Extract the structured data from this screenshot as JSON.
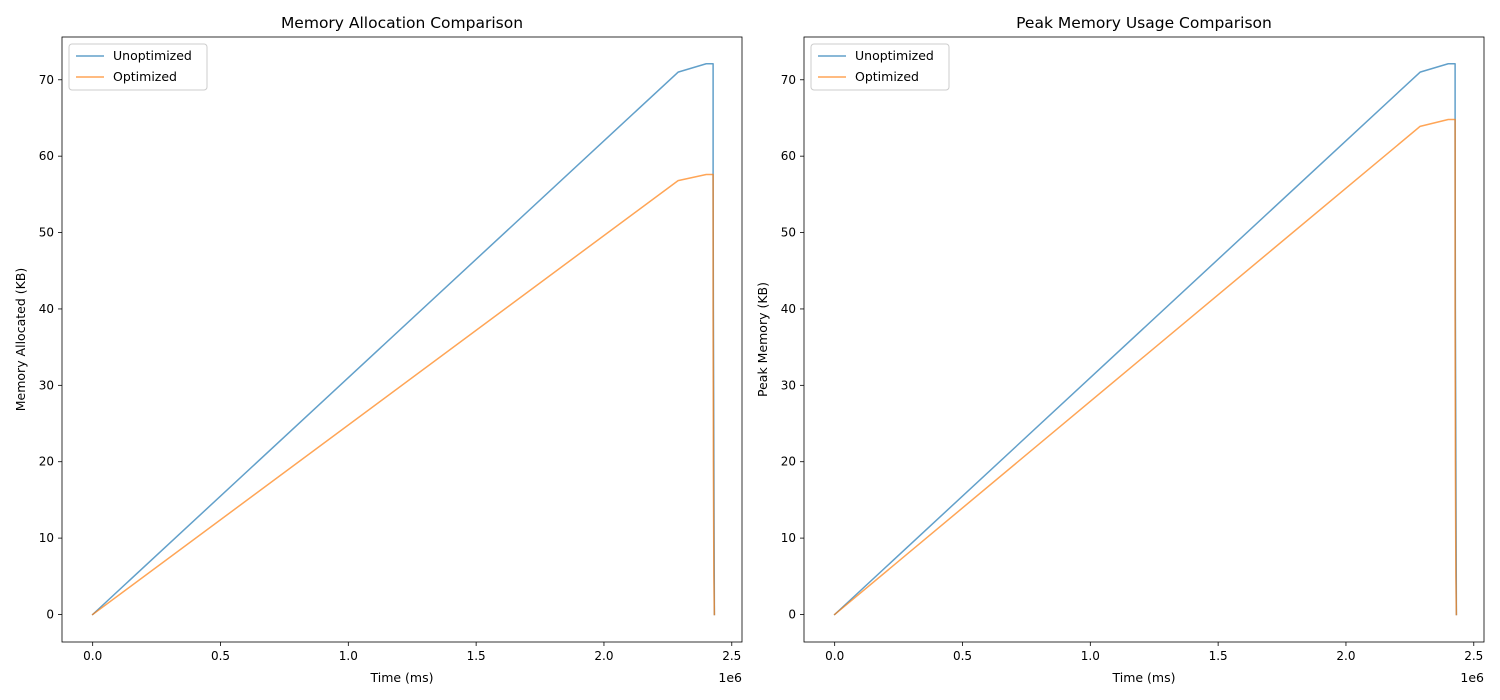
{
  "chart_data": [
    {
      "type": "line",
      "title": "Memory Allocation Comparison",
      "xlabel": "Time (ms)",
      "ylabel": "Memory Allocated (KB)",
      "x_offset_text": "1e6",
      "xlim": [
        -0.12,
        2.54
      ],
      "ylim": [
        -3.6,
        75.6
      ],
      "x_unit_multiplier": 1000000,
      "xticks": [
        0.0,
        0.5,
        1.0,
        1.5,
        2.0,
        2.5
      ],
      "xtick_labels": [
        "0.0",
        "0.5",
        "1.0",
        "1.5",
        "2.0",
        "2.5"
      ],
      "yticks": [
        0,
        10,
        20,
        30,
        40,
        50,
        60,
        70
      ],
      "ytick_labels": [
        "0",
        "10",
        "20",
        "30",
        "40",
        "50",
        "60",
        "70"
      ],
      "grid": false,
      "legend_position": "top-left",
      "series": [
        {
          "name": "Unoptimized",
          "color": "#1f77b4",
          "x": [
            0.0,
            2.29,
            2.4,
            2.427,
            2.427,
            2.428,
            2.43,
            2.432
          ],
          "y": [
            0.0,
            71.0,
            72.1,
            72.1,
            57.6,
            40.0,
            20.0,
            0.0
          ]
        },
        {
          "name": "Optimized",
          "color": "#ff7f0e",
          "x": [
            0.0,
            2.29,
            2.4,
            2.427,
            2.427,
            2.428,
            2.43,
            2.432
          ],
          "y": [
            0.0,
            56.8,
            57.6,
            57.6,
            40.0,
            20.0,
            5.0,
            0.0
          ]
        }
      ]
    },
    {
      "type": "line",
      "title": "Peak Memory Usage Comparison",
      "xlabel": "Time (ms)",
      "ylabel": "Peak Memory (KB)",
      "x_offset_text": "1e6",
      "xlim": [
        -0.12,
        2.54
      ],
      "ylim": [
        -3.6,
        75.6
      ],
      "x_unit_multiplier": 1000000,
      "xticks": [
        0.0,
        0.5,
        1.0,
        1.5,
        2.0,
        2.5
      ],
      "xtick_labels": [
        "0.0",
        "0.5",
        "1.0",
        "1.5",
        "2.0",
        "2.5"
      ],
      "yticks": [
        0,
        10,
        20,
        30,
        40,
        50,
        60,
        70
      ],
      "ytick_labels": [
        "0",
        "10",
        "20",
        "30",
        "40",
        "50",
        "60",
        "70"
      ],
      "grid": false,
      "legend_position": "top-left",
      "series": [
        {
          "name": "Unoptimized",
          "color": "#1f77b4",
          "x": [
            0.0,
            2.29,
            2.4,
            2.427,
            2.427,
            2.428,
            2.43,
            2.432
          ],
          "y": [
            0.0,
            71.0,
            72.1,
            72.1,
            64.8,
            40.0,
            20.0,
            0.0
          ]
        },
        {
          "name": "Optimized",
          "color": "#ff7f0e",
          "x": [
            0.0,
            2.29,
            2.4,
            2.427,
            2.427,
            2.428,
            2.43,
            2.432
          ],
          "y": [
            0.0,
            63.9,
            64.8,
            64.8,
            40.0,
            20.0,
            5.0,
            0.0
          ]
        }
      ]
    }
  ]
}
